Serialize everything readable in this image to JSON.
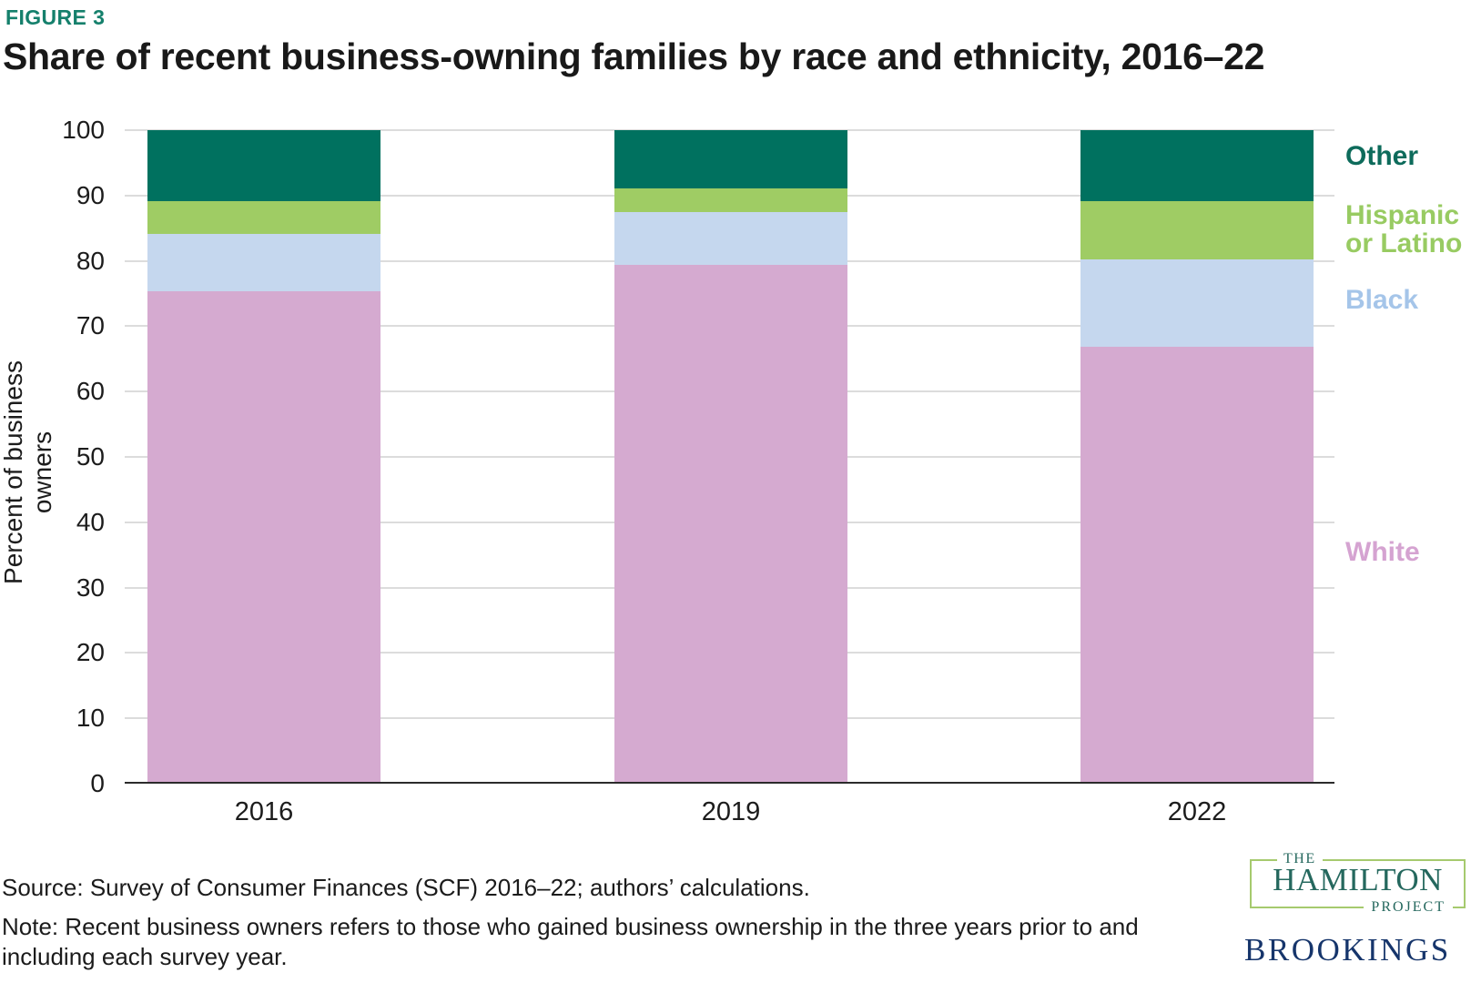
{
  "figure_label": "FIGURE 3",
  "title": "Share of recent business-owning families by race and ethnicity, 2016–22",
  "chart_data": {
    "type": "bar",
    "stacked": true,
    "categories": [
      "2016",
      "2019",
      "2022"
    ],
    "series": [
      {
        "name": "White",
        "color": "#D5AAD0",
        "values": [
          75.3,
          79.4,
          66.8
        ]
      },
      {
        "name": "Black",
        "color": "#C5D7EE",
        "values": [
          8.8,
          8.1,
          13.4
        ]
      },
      {
        "name": "Hispanic or Latino",
        "color": "#9FCC64",
        "values": [
          5.0,
          3.6,
          9.0
        ]
      },
      {
        "name": "Other",
        "color": "#00715F",
        "values": [
          10.9,
          8.9,
          10.8
        ]
      }
    ],
    "title": "Share of recent business-owning families by race and ethnicity, 2016–22",
    "xlabel": "",
    "ylabel": "Percent of business owners",
    "ylim": [
      0,
      100
    ],
    "yticks": [
      0,
      10,
      20,
      30,
      40,
      50,
      60,
      70,
      80,
      90,
      100
    ],
    "grid": true,
    "legend_position": "right"
  },
  "legend": [
    {
      "label": "Other",
      "color": "#0D6B5B"
    },
    {
      "label": "Hispanic\nor Latino",
      "color": "#98CB62"
    },
    {
      "label": "Black",
      "color": "#A5C5E9"
    },
    {
      "label": "White",
      "color": "#D5A3D1"
    }
  ],
  "source": "Source: Survey of Consumer Finances (SCF) 2016–22; authors’ calculations.",
  "note": "Note: Recent business owners refers to those who gained business ownership in the three years prior to and including each survey year.",
  "logos": {
    "hamilton_the": "THE",
    "hamilton_name": "HAMILTON",
    "hamilton_project": "PROJECT",
    "brookings": "BROOKINGS"
  }
}
